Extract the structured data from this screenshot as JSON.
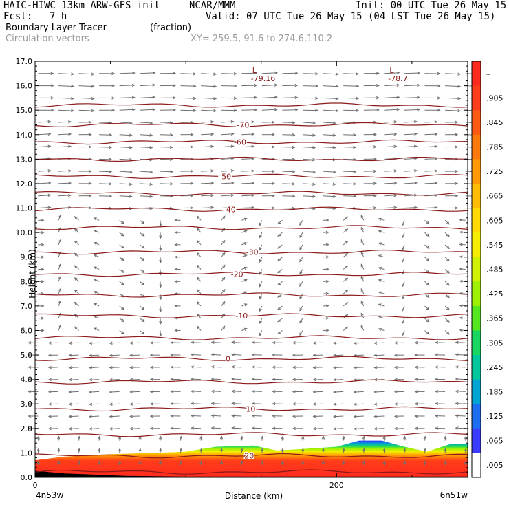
{
  "header": {
    "model": "HAIC-HIWC 13km ARW-GFS init",
    "center": "NCAR/MMM",
    "init": "Init: 00 UTC Tue 26 May 15",
    "fcst_label": "Fcst:",
    "fcst_value": "7 h",
    "valid": "Valid: 07 UTC Tue 26 May 15 (04 LST Tue 26 May 15)",
    "field": "Boundary Layer Tracer",
    "units": "(fraction)",
    "overlay": "Circulation vectors",
    "xy": "XY= 259.5, 91.6 to 274.6,110.2"
  },
  "colors": {
    "contour": "#8b1a1a",
    "vector": "#6e6e6e",
    "axis": "#000000"
  },
  "chart_data": {
    "type": "heatmap",
    "title": "Boundary Layer Tracer",
    "xlabel": "Distance (km)",
    "ylabel": "Height (km)",
    "xlim": [
      0,
      287
    ],
    "ylim": [
      0,
      17
    ],
    "y_ticks": [
      "0.0",
      "1.0",
      "2.0",
      "3.0",
      "4.0",
      "5.0",
      "6.0",
      "7.0",
      "8.0",
      "9.0",
      "10.0",
      "11.0",
      "12.0",
      "13.0",
      "14.0",
      "15.0",
      "16.0",
      "17.0"
    ],
    "x_tick_values": [
      0,
      200
    ],
    "x_tick_labels": [
      "0",
      "200"
    ],
    "x_end_labels": [
      "4n53w",
      "6n51w"
    ],
    "colorbar_labels": [
      "–",
      ".905",
      ".845",
      ".785",
      ".725",
      ".665",
      ".605",
      ".545",
      ".485",
      ".425",
      ".365",
      ".305",
      ".245",
      ".185",
      ".125",
      ".065",
      ".005"
    ],
    "colorbar_colors": [
      "#ff2a1e",
      "#ff3d1a",
      "#ff5a14",
      "#ff7a0c",
      "#ff9a06",
      "#ffbc02",
      "#ffda00",
      "#f5ee00",
      "#d0f200",
      "#9cf000",
      "#55e820",
      "#18d660",
      "#00c89c",
      "#00a4d2",
      "#1e6ef0",
      "#3a3cff",
      "#ffffff"
    ],
    "isotherm_heights_km": [
      0.22,
      0.88,
      1.75,
      2.8,
      3.9,
      4.85,
      5.7,
      6.6,
      7.45,
      8.3,
      9.2,
      10.2,
      10.95,
      11.6,
      12.3,
      13.0,
      13.7,
      14.4,
      15.2
    ],
    "isotherm_labels": [
      {
        "text": "20",
        "x": 142,
        "y": 0.88
      },
      {
        "text": "10",
        "x": 143,
        "y": 2.8
      },
      {
        "text": "0",
        "x": 128,
        "y": 4.85
      },
      {
        "text": "-10",
        "x": 137,
        "y": 6.6
      },
      {
        "text": "-20",
        "x": 134,
        "y": 8.3
      },
      {
        "text": "-30",
        "x": 144,
        "y": 9.2
      },
      {
        "text": "-40",
        "x": 129,
        "y": 10.95
      },
      {
        "text": "-50",
        "x": 126,
        "y": 12.3
      },
      {
        "text": "-60",
        "x": 136,
        "y": 13.7
      },
      {
        "text": "-70",
        "x": 138,
        "y": 14.4
      }
    ],
    "lows": [
      {
        "label": "L",
        "value": "-79.16",
        "x": 145,
        "y": 16.8
      },
      {
        "label": "L",
        "value": "-78.7",
        "x": 236,
        "y": 16.8
      }
    ],
    "tracer_top_km": [
      [
        0,
        0.7
      ],
      [
        20,
        0.85
      ],
      [
        50,
        0.95
      ],
      [
        80,
        1.0
      ],
      [
        100,
        1.05
      ],
      [
        120,
        1.25
      ],
      [
        145,
        1.3
      ],
      [
        160,
        1.1
      ],
      [
        175,
        1.15
      ],
      [
        200,
        1.25
      ],
      [
        215,
        1.5
      ],
      [
        230,
        1.5
      ],
      [
        245,
        1.25
      ],
      [
        260,
        1.05
      ],
      [
        275,
        1.35
      ],
      [
        287,
        1.35
      ]
    ],
    "terrain_top_km": [
      [
        0,
        0.25
      ],
      [
        20,
        0.15
      ],
      [
        60,
        0.05
      ],
      [
        100,
        0.02
      ],
      [
        287,
        0.02
      ]
    ],
    "grid": false
  }
}
